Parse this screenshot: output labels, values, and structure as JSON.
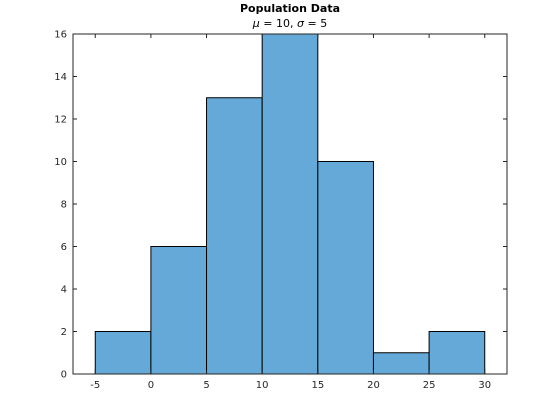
{
  "chart_data": {
    "type": "histogram",
    "title": "Population Data",
    "subtitle_parts": {
      "mu_symbol": "μ",
      "mu_text": " = 10, ",
      "sigma_symbol": "σ",
      "sigma_text": " = 5"
    },
    "bins": [
      {
        "x0": -5,
        "x1": 0,
        "value": 2
      },
      {
        "x0": 0,
        "x1": 5,
        "value": 6
      },
      {
        "x0": 5,
        "x1": 10,
        "value": 13
      },
      {
        "x0": 10,
        "x1": 15,
        "value": 16
      },
      {
        "x0": 15,
        "x1": 20,
        "value": 10
      },
      {
        "x0": 20,
        "x1": 25,
        "value": 1
      },
      {
        "x0": 25,
        "x1": 30,
        "value": 2
      }
    ],
    "xlim": [
      -7,
      32
    ],
    "ylim": [
      0,
      16
    ],
    "xticks": [
      -5,
      0,
      5,
      10,
      15,
      20,
      25,
      30
    ],
    "yticks": [
      0,
      2,
      4,
      6,
      8,
      10,
      12,
      14,
      16
    ],
    "xlabel": "",
    "ylabel": "",
    "grid": false,
    "colors": {
      "bar_fill": "#65a9d8",
      "bar_edge": "#000000",
      "axis": "#262626"
    }
  }
}
